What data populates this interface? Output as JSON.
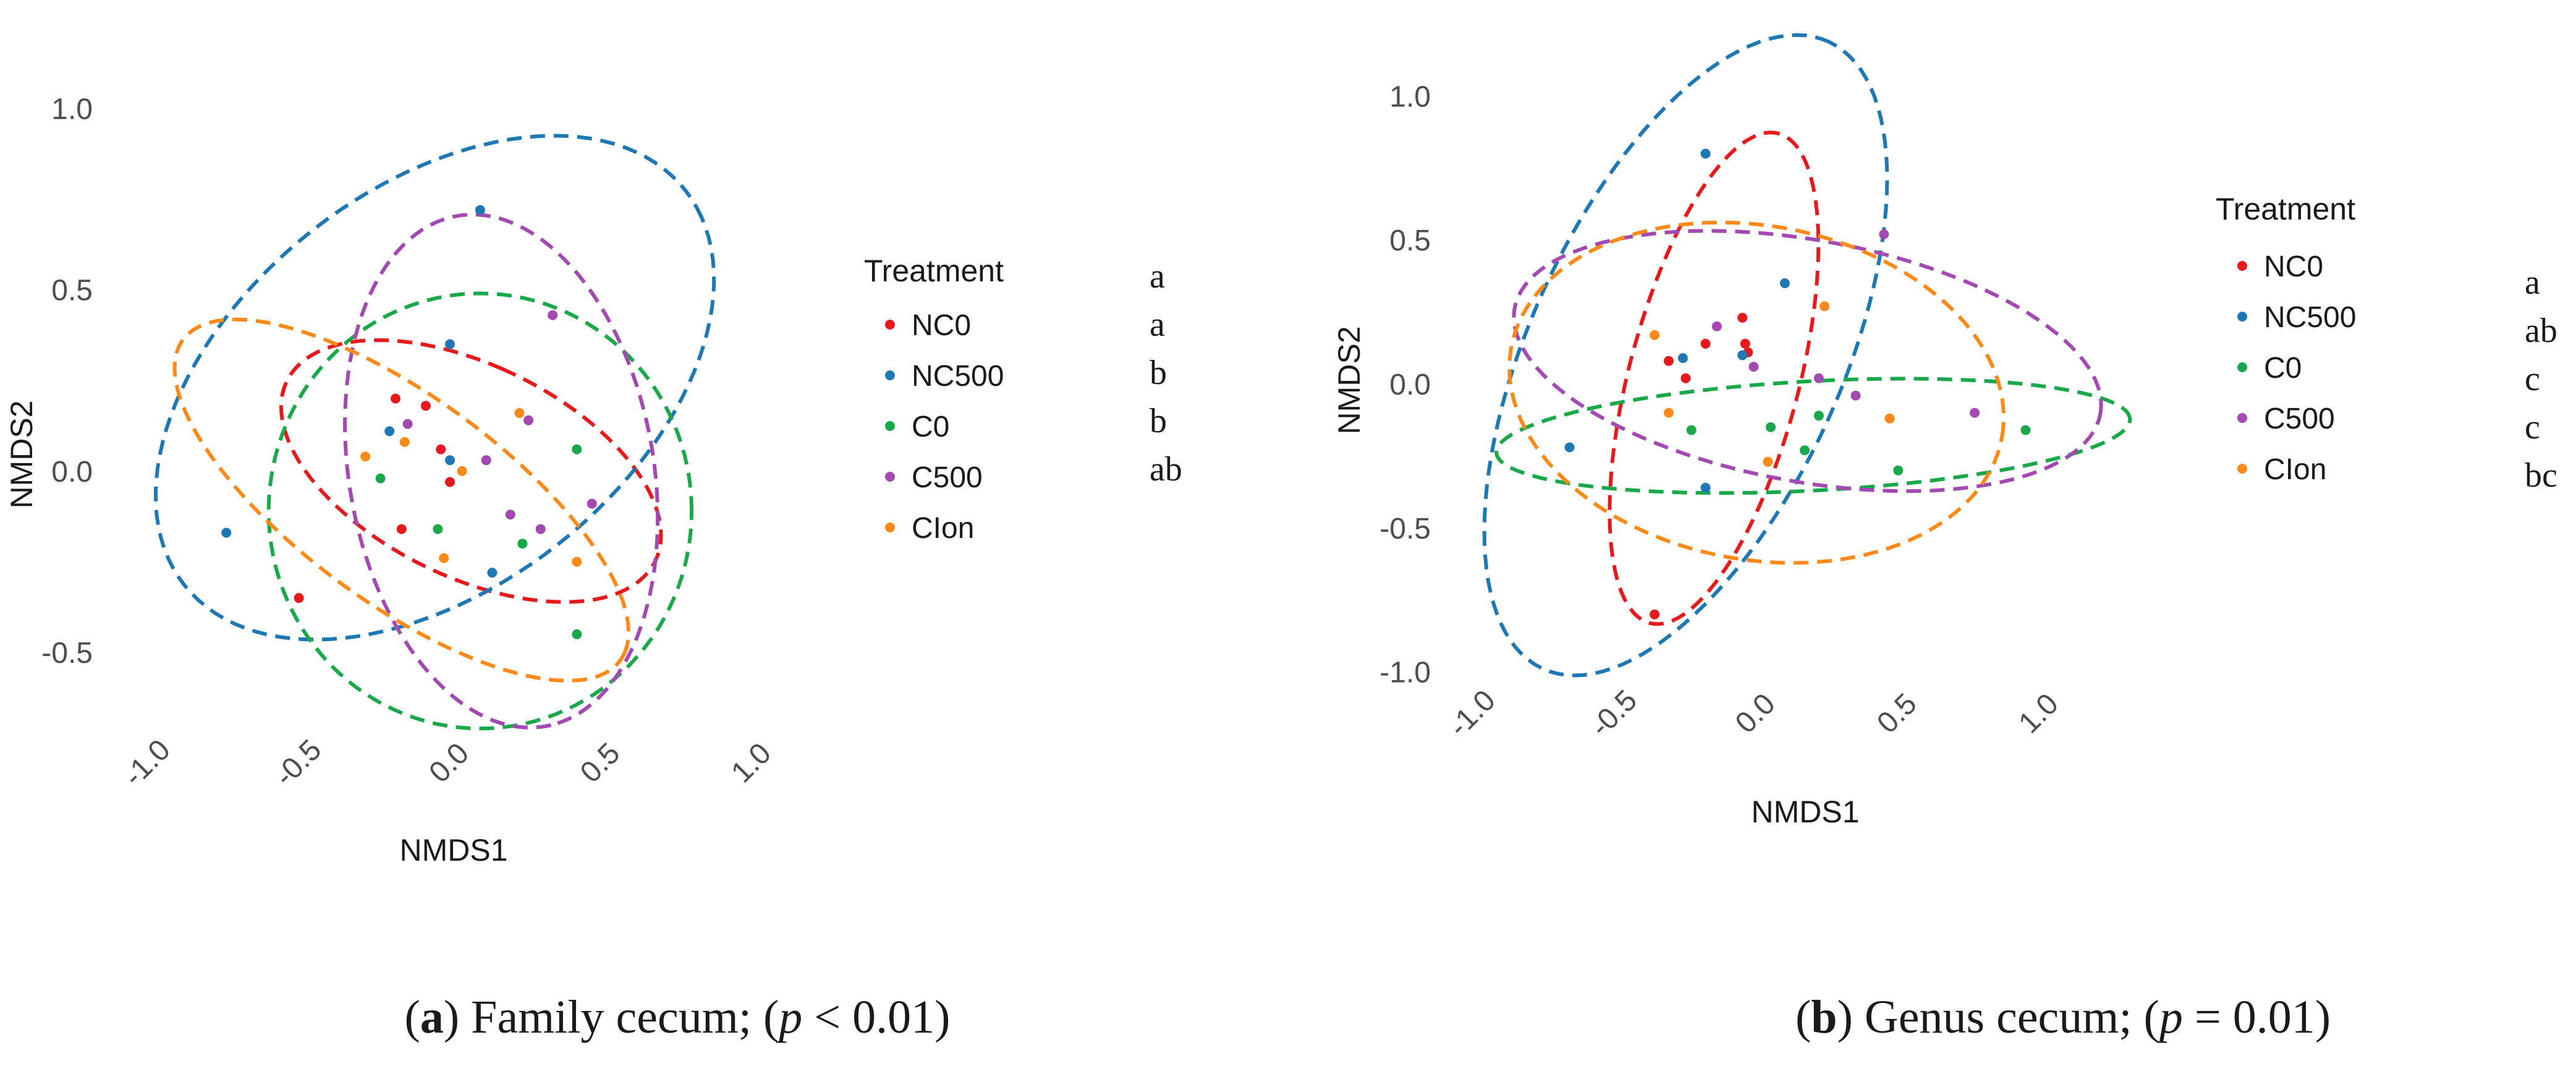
{
  "colors": {
    "NC0": "#e41a1c",
    "NC500": "#1f78b4",
    "C0": "#1aa84a",
    "C500": "#a24ab1",
    "CIon": "#ff8a1a"
  },
  "chart_data": [
    {
      "type": "scatter",
      "panel": "a",
      "xlabel": "NMDS1",
      "ylabel": "NMDS2",
      "xlim": [
        -1.1,
        1.15
      ],
      "ylim": [
        -0.73,
        1.12
      ],
      "xticks": [
        "-1.0",
        "-0.5",
        "0.0",
        "0.5",
        "1.0"
      ],
      "xtick_values": [
        -1.0,
        -0.5,
        0.0,
        0.5,
        1.0
      ],
      "yticks": [
        "1.0",
        "0.5",
        "0.0",
        "-0.5"
      ],
      "ytick_values": [
        1.0,
        0.5,
        0.0,
        -0.5
      ],
      "legend_title": "Treatment",
      "legend_position": "right",
      "series": [
        {
          "name": "NC0",
          "letter": "a",
          "points": [
            [
              -0.2,
              0.2
            ],
            [
              -0.1,
              0.18
            ],
            [
              -0.05,
              0.06
            ],
            [
              -0.02,
              -0.03
            ],
            [
              -0.18,
              -0.16
            ],
            [
              -0.52,
              -0.35
            ]
          ],
          "ellipse": {
            "cx": 0.05,
            "cy": 0.0,
            "rx": 0.3,
            "ry": 0.66,
            "angle": 70
          }
        },
        {
          "name": "NC500",
          "letter": "a",
          "points": [
            [
              0.08,
              0.72
            ],
            [
              -0.02,
              0.35
            ],
            [
              -0.22,
              0.11
            ],
            [
              -0.02,
              0.03
            ],
            [
              -0.76,
              -0.17
            ],
            [
              0.12,
              -0.28
            ]
          ],
          "ellipse": {
            "cx": -0.07,
            "cy": 0.23,
            "rx": 1.0,
            "ry": 0.58,
            "angle": 28
          }
        },
        {
          "name": "C0",
          "letter": "b",
          "points": [
            [
              -0.25,
              -0.02
            ],
            [
              0.4,
              0.06
            ],
            [
              -0.06,
              -0.16
            ],
            [
              0.22,
              -0.2
            ],
            [
              0.4,
              -0.45
            ]
          ],
          "ellipse": {
            "cx": 0.08,
            "cy": -0.11,
            "rx": 0.7,
            "ry": 0.6,
            "angle": 0
          }
        },
        {
          "name": "C500",
          "letter": "b",
          "points": [
            [
              0.32,
              0.43
            ],
            [
              -0.16,
              0.13
            ],
            [
              0.24,
              0.14
            ],
            [
              0.1,
              0.03
            ],
            [
              0.18,
              -0.12
            ],
            [
              0.45,
              -0.09
            ],
            [
              0.28,
              -0.16
            ]
          ],
          "ellipse": {
            "cx": 0.15,
            "cy": 0.0,
            "rx": 0.72,
            "ry": 0.5,
            "angle": -75
          }
        },
        {
          "name": "CIon",
          "letter": "ab",
          "points": [
            [
              -0.3,
              0.04
            ],
            [
              -0.17,
              0.08
            ],
            [
              0.02,
              0.0
            ],
            [
              -0.04,
              -0.24
            ],
            [
              0.4,
              -0.25
            ],
            [
              0.21,
              0.16
            ]
          ],
          "ellipse": {
            "cx": -0.18,
            "cy": -0.08,
            "rx": 0.85,
            "ry": 0.3,
            "angle": -30
          }
        }
      ],
      "caption_letter": "a",
      "caption_text": " Family cecum; (",
      "caption_p": "p",
      "caption_stat": " < 0.01)"
    },
    {
      "type": "scatter",
      "panel": "b",
      "xlabel": "NMDS1",
      "ylabel": "NMDS2",
      "xlim": [
        -1.05,
        1.35
      ],
      "ylim": [
        -1.05,
        1.28
      ],
      "xticks": [
        "-1.0",
        "-0.5",
        "0.0",
        "0.5",
        "1.0"
      ],
      "xtick_values": [
        -1.0,
        -0.5,
        0.0,
        0.5,
        1.0
      ],
      "yticks": [
        "1.0",
        "0.5",
        "0.0",
        "-0.5",
        "-1.0"
      ],
      "ytick_values": [
        1.0,
        0.5,
        0.0,
        -0.5,
        -1.0
      ],
      "legend_title": "Treatment",
      "legend_position": "right",
      "series": [
        {
          "name": "NC0",
          "letter": "a",
          "points": [
            [
              -0.07,
              0.23
            ],
            [
              -0.06,
              0.14
            ],
            [
              -0.05,
              0.11
            ],
            [
              -0.2,
              0.14
            ],
            [
              -0.33,
              0.08
            ],
            [
              -0.27,
              0.02
            ],
            [
              -0.38,
              -0.8
            ]
          ],
          "ellipse": {
            "cx": -0.17,
            "cy": 0.02,
            "rx": 0.88,
            "ry": 0.3,
            "angle": 75
          }
        },
        {
          "name": "NC500",
          "letter": "ab",
          "points": [
            [
              -0.2,
              0.8
            ],
            [
              0.08,
              0.35
            ],
            [
              -0.28,
              0.09
            ],
            [
              -0.07,
              0.1
            ],
            [
              -0.68,
              -0.22
            ],
            [
              -0.2,
              -0.36
            ]
          ],
          "ellipse": {
            "cx": -0.27,
            "cy": 0.1,
            "rx": 1.2,
            "ry": 0.55,
            "angle": 65
          }
        },
        {
          "name": "C0",
          "letter": "c",
          "points": [
            [
              -0.25,
              -0.16
            ],
            [
              0.03,
              -0.15
            ],
            [
              0.2,
              -0.11
            ],
            [
              0.15,
              -0.23
            ],
            [
              0.48,
              -0.3
            ],
            [
              0.93,
              -0.16
            ]
          ],
          "ellipse": {
            "cx": 0.18,
            "cy": -0.18,
            "rx": 1.12,
            "ry": 0.19,
            "angle": 3
          }
        },
        {
          "name": "C500",
          "letter": "c",
          "points": [
            [
              0.43,
              0.52
            ],
            [
              -0.16,
              0.2
            ],
            [
              0.2,
              0.02
            ],
            [
              0.33,
              -0.04
            ],
            [
              -0.03,
              0.06
            ],
            [
              0.75,
              -0.1
            ]
          ],
          "ellipse": {
            "cx": 0.16,
            "cy": 0.08,
            "rx": 1.05,
            "ry": 0.42,
            "angle": -10
          }
        },
        {
          "name": "CIon",
          "letter": "bc",
          "points": [
            [
              -0.38,
              0.17
            ],
            [
              -0.33,
              -0.1
            ],
            [
              0.22,
              0.27
            ],
            [
              0.45,
              -0.12
            ],
            [
              0.02,
              -0.27
            ]
          ],
          "ellipse": {
            "cx": -0.02,
            "cy": -0.03,
            "rx": 0.88,
            "ry": 0.58,
            "angle": -10
          }
        }
      ],
      "caption_letter": "b",
      "caption_text": " Genus cecum; (",
      "caption_p": "p",
      "caption_stat": " = 0.01)"
    }
  ]
}
